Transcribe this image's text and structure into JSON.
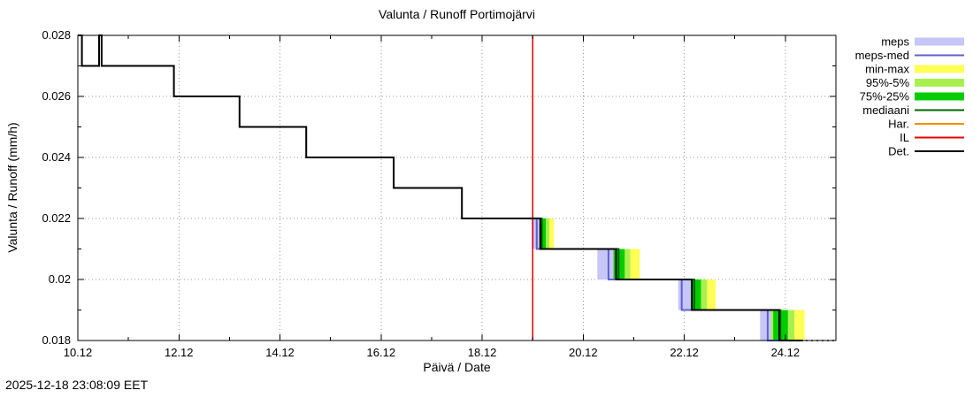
{
  "chart_data": {
    "type": "line",
    "title": "Valunta / Runoff  Portimojärvi",
    "xlabel": "Päivä / Date",
    "ylabel": "Valunta / Runoff (mm/h)",
    "timestamp": "2025-12-18 23:08:09 EET",
    "xlim": [
      10,
      25
    ],
    "ylim": [
      0.018,
      0.028
    ],
    "x_ticks": [
      {
        "v": 10,
        "label": "10.12"
      },
      {
        "v": 12,
        "label": "12.12"
      },
      {
        "v": 14,
        "label": "14.12"
      },
      {
        "v": 16,
        "label": "16.12"
      },
      {
        "v": 18,
        "label": "18.12"
      },
      {
        "v": 20,
        "label": "20.12"
      },
      {
        "v": 22,
        "label": "22.12"
      },
      {
        "v": 24,
        "label": "24.12"
      }
    ],
    "x_minor_ticks": [
      11,
      13,
      15,
      17,
      19,
      21,
      23
    ],
    "y_ticks": [
      {
        "v": 0.018,
        "label": "0.018"
      },
      {
        "v": 0.02,
        "label": "0.02"
      },
      {
        "v": 0.022,
        "label": "0.022"
      },
      {
        "v": 0.024,
        "label": "0.024"
      },
      {
        "v": 0.026,
        "label": "0.026"
      },
      {
        "v": 0.028,
        "label": "0.028"
      }
    ],
    "y_minor_ticks": [
      0.019,
      0.021,
      0.023,
      0.025,
      0.027
    ],
    "forecast_start_x": 19.0,
    "colors": {
      "grid": "#9a9a9a",
      "meps": "#c6c6f7",
      "meps_med": "#5f5fd3",
      "minmax": "#ffff55",
      "p95": "#a8f050",
      "p75": "#00cc00",
      "median": "#006400",
      "har": "#ff8c00",
      "il": "#e60000",
      "det": "#000000"
    },
    "legend": [
      {
        "key": "meps",
        "label": "meps",
        "style": "band"
      },
      {
        "key": "meps_med",
        "label": "meps-med",
        "style": "line"
      },
      {
        "key": "minmax",
        "label": "min-max",
        "style": "band"
      },
      {
        "key": "p95",
        "label": "95%-5%",
        "style": "band"
      },
      {
        "key": "p75",
        "label": "75%-25%",
        "style": "band"
      },
      {
        "key": "median",
        "label": "mediaani",
        "style": "line"
      },
      {
        "key": "har",
        "label": "Har.",
        "style": "line"
      },
      {
        "key": "il",
        "label": "IL",
        "style": "line"
      },
      {
        "key": "det",
        "label": "Det.",
        "style": "line"
      }
    ],
    "det_points": [
      [
        10.0,
        0.028
      ],
      [
        10.08,
        0.028
      ],
      [
        10.08,
        0.027
      ],
      [
        10.42,
        0.027
      ],
      [
        10.42,
        0.028
      ],
      [
        10.47,
        0.028
      ],
      [
        10.47,
        0.027
      ],
      [
        11.9,
        0.027
      ],
      [
        11.9,
        0.026
      ],
      [
        13.2,
        0.026
      ],
      [
        13.2,
        0.025
      ],
      [
        14.52,
        0.025
      ],
      [
        14.52,
        0.024
      ],
      [
        16.25,
        0.024
      ],
      [
        16.25,
        0.023
      ],
      [
        17.6,
        0.023
      ],
      [
        17.6,
        0.022
      ],
      [
        19.15,
        0.022
      ],
      [
        19.15,
        0.021
      ],
      [
        20.65,
        0.021
      ],
      [
        20.65,
        0.02
      ],
      [
        22.15,
        0.02
      ],
      [
        22.15,
        0.019
      ],
      [
        23.88,
        0.019
      ],
      [
        23.88,
        0.018
      ],
      [
        24.3,
        0.018
      ]
    ],
    "det_tail": [
      [
        24.3,
        0.018
      ],
      [
        25.0,
        0.018
      ]
    ],
    "median_points": [
      [
        19.0,
        0.022
      ],
      [
        19.18,
        0.022
      ],
      [
        19.18,
        0.021
      ],
      [
        20.7,
        0.021
      ],
      [
        20.7,
        0.02
      ],
      [
        22.2,
        0.02
      ],
      [
        22.2,
        0.019
      ],
      [
        23.9,
        0.019
      ],
      [
        23.9,
        0.018
      ],
      [
        24.35,
        0.018
      ]
    ],
    "meps_med_points": [
      [
        19.0,
        0.022
      ],
      [
        19.08,
        0.022
      ],
      [
        19.08,
        0.021
      ],
      [
        20.5,
        0.021
      ],
      [
        20.5,
        0.02
      ],
      [
        21.95,
        0.02
      ],
      [
        21.95,
        0.019
      ],
      [
        23.65,
        0.019
      ],
      [
        23.65,
        0.018
      ],
      [
        24.1,
        0.018
      ]
    ],
    "forecast_steps": [
      {
        "from": 0.022,
        "to": 0.021,
        "minmax": [
          19.03,
          19.42
        ],
        "p95": [
          19.07,
          19.33
        ],
        "p75": [
          19.11,
          19.26
        ],
        "meps": [
          18.98,
          19.18
        ]
      },
      {
        "from": 0.021,
        "to": 0.02,
        "minmax": [
          20.35,
          21.12
        ],
        "p95": [
          20.45,
          20.93
        ],
        "p75": [
          20.53,
          20.82
        ],
        "meps": [
          20.28,
          20.6
        ]
      },
      {
        "from": 0.02,
        "to": 0.019,
        "minmax": [
          22.03,
          22.62
        ],
        "p95": [
          22.08,
          22.45
        ],
        "p75": [
          22.12,
          22.33
        ],
        "meps": [
          21.88,
          22.15
        ]
      },
      {
        "from": 0.019,
        "to": 0.018,
        "minmax": [
          23.58,
          24.38
        ],
        "p95": [
          23.68,
          24.18
        ],
        "p75": [
          23.76,
          24.05
        ],
        "meps": [
          23.5,
          23.72
        ]
      }
    ]
  }
}
